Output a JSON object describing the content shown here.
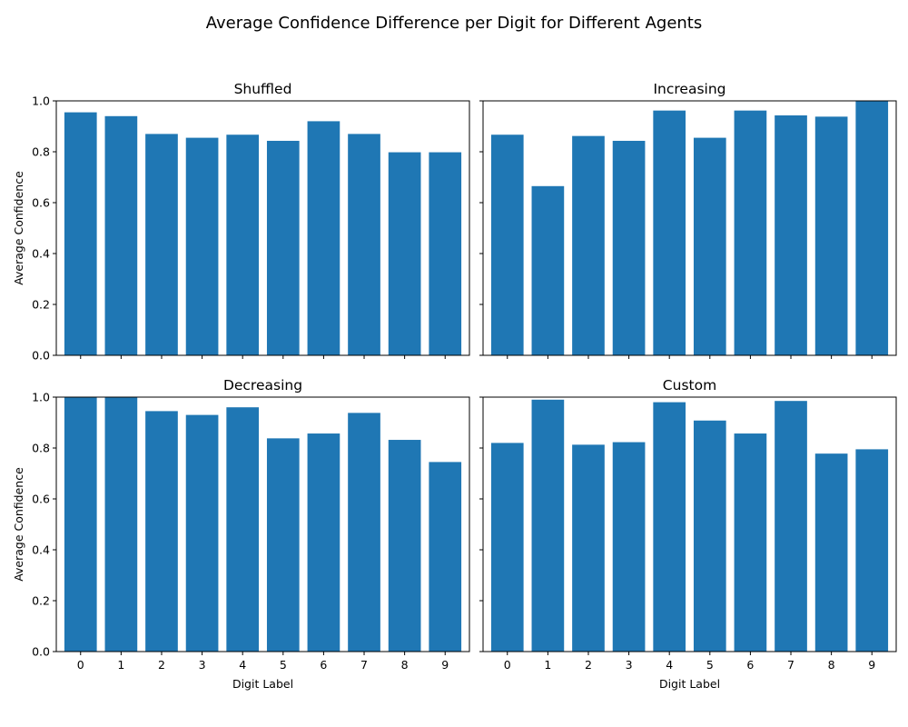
{
  "figure": {
    "suptitle": "Average Confidence Difference per Digit for Different Agents"
  },
  "chart_data": [
    {
      "type": "bar",
      "title": "Shuffled",
      "categories": [
        "0",
        "1",
        "2",
        "3",
        "4",
        "5",
        "6",
        "7",
        "8",
        "9"
      ],
      "values": [
        0.955,
        0.94,
        0.87,
        0.855,
        0.867,
        0.843,
        0.92,
        0.87,
        0.798,
        0.798
      ],
      "xlabel": "",
      "ylabel": "Average Confidence",
      "ylim": [
        0,
        1.0
      ],
      "yticks": [
        "0.0",
        "0.2",
        "0.4",
        "0.6",
        "0.8",
        "1.0"
      ],
      "color": "#1f77b4",
      "grid": false
    },
    {
      "type": "bar",
      "title": "Increasing",
      "categories": [
        "0",
        "1",
        "2",
        "3",
        "4",
        "5",
        "6",
        "7",
        "8",
        "9"
      ],
      "values": [
        0.867,
        0.665,
        0.862,
        0.843,
        0.962,
        0.855,
        0.962,
        0.943,
        0.938,
        1.0
      ],
      "xlabel": "",
      "ylabel": "",
      "ylim": [
        0,
        1.0
      ],
      "yticks": [
        "0.0",
        "0.2",
        "0.4",
        "0.6",
        "0.8",
        "1.0"
      ],
      "color": "#1f77b4",
      "grid": false
    },
    {
      "type": "bar",
      "title": "Decreasing",
      "categories": [
        "0",
        "1",
        "2",
        "3",
        "4",
        "5",
        "6",
        "7",
        "8",
        "9"
      ],
      "values": [
        1.0,
        1.0,
        0.945,
        0.93,
        0.96,
        0.838,
        0.857,
        0.938,
        0.832,
        0.745
      ],
      "xlabel": "Digit Label",
      "ylabel": "Average Confidence",
      "ylim": [
        0,
        1.0
      ],
      "yticks": [
        "0.0",
        "0.2",
        "0.4",
        "0.6",
        "0.8",
        "1.0"
      ],
      "color": "#1f77b4",
      "grid": false
    },
    {
      "type": "bar",
      "title": "Custom",
      "categories": [
        "0",
        "1",
        "2",
        "3",
        "4",
        "5",
        "6",
        "7",
        "8",
        "9"
      ],
      "values": [
        0.82,
        0.99,
        0.813,
        0.823,
        0.98,
        0.908,
        0.857,
        0.985,
        0.778,
        0.795
      ],
      "xlabel": "Digit Label",
      "ylabel": "",
      "ylim": [
        0,
        1.0
      ],
      "yticks": [
        "0.0",
        "0.2",
        "0.4",
        "0.6",
        "0.8",
        "1.0"
      ],
      "color": "#1f77b4",
      "grid": false
    }
  ]
}
